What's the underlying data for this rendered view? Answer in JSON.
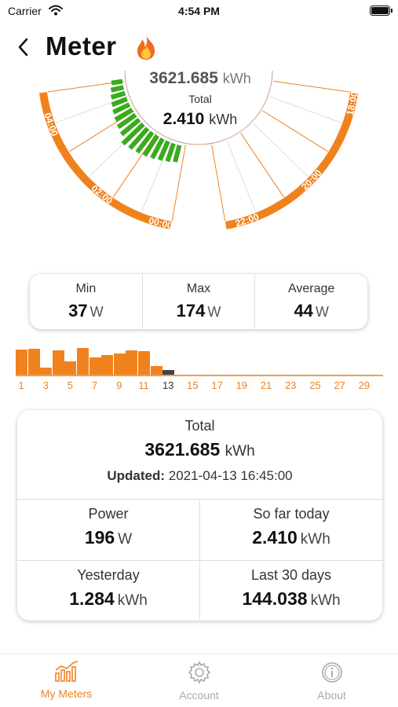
{
  "status_bar": {
    "carrier": "Carrier",
    "time": "4:54 PM"
  },
  "header": {
    "title": "Meter"
  },
  "dial": {
    "total_value": "3621.685",
    "total_unit": "kWh",
    "total_label": "Total",
    "today_value": "2.410",
    "today_unit": "kWh",
    "hour_labels": [
      "00:00",
      "02:00",
      "04:00",
      "18:00",
      "20:00",
      "22:00"
    ],
    "accent_color": "#f0821e",
    "bar_color": "#3aaa1e"
  },
  "stats": {
    "min": {
      "label": "Min",
      "value": "37",
      "unit": "W"
    },
    "max": {
      "label": "Max",
      "value": "174",
      "unit": "W"
    },
    "average": {
      "label": "Average",
      "value": "44",
      "unit": "W"
    }
  },
  "daily_chart": {
    "day_labels": [
      "1",
      "3",
      "5",
      "7",
      "9",
      "11",
      "13",
      "15",
      "17",
      "19",
      "21",
      "23",
      "25",
      "27",
      "29"
    ],
    "current_day": "13",
    "levels": [
      0.9,
      0.92,
      0.26,
      0.85,
      0.46,
      0.95,
      0.6,
      0.7,
      0.76,
      0.86,
      0.84,
      0.3,
      0.18
    ]
  },
  "summary": {
    "total_label": "Total",
    "total_value": "3621.685",
    "total_unit": "kWh",
    "updated_label": "Updated:",
    "updated_value": "2021-04-13 16:45:00",
    "power": {
      "label": "Power",
      "value": "196",
      "unit": "W"
    },
    "so_far_today": {
      "label": "So far today",
      "value": "2.410",
      "unit": "kWh"
    },
    "yesterday": {
      "label": "Yesterday",
      "value": "1.284",
      "unit": "kWh"
    },
    "last_30_days": {
      "label": "Last 30 days",
      "value": "144.038",
      "unit": "kWh"
    }
  },
  "tabs": [
    {
      "label": "My Meters",
      "icon": "chart-icon",
      "active": true
    },
    {
      "label": "Account",
      "icon": "gear-icon",
      "active": false
    },
    {
      "label": "About",
      "icon": "info-icon",
      "active": false
    }
  ]
}
